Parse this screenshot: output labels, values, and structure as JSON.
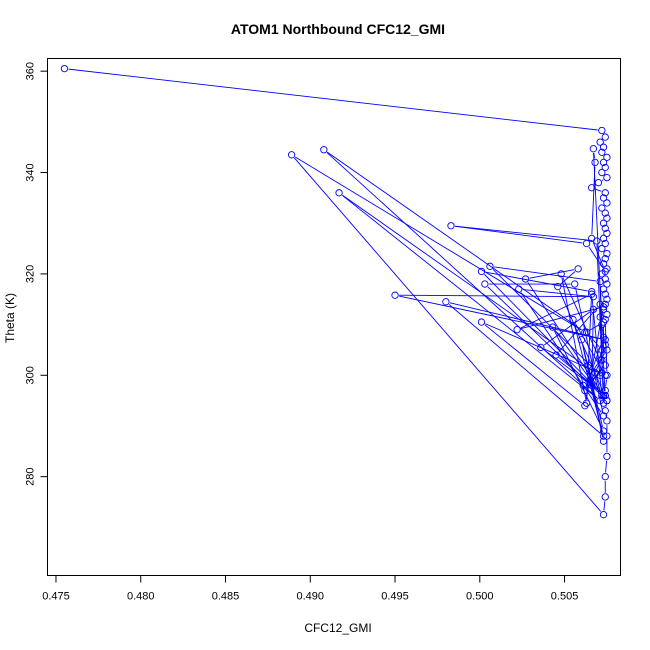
{
  "chart_data": {
    "type": "line",
    "title": "ATOM1 Northbound CFC12_GMI",
    "xlabel": "CFC12_GMI",
    "ylabel": "Theta (K)",
    "xlim": [
      0.4745,
      0.5083
    ],
    "ylim": [
      260.5,
      362.5
    ],
    "xticks": [
      0.475,
      0.48,
      0.485,
      0.49,
      0.495,
      0.5,
      0.505
    ],
    "xtick_labels": [
      "0.475",
      "0.480",
      "0.485",
      "0.490",
      "0.495",
      "0.500",
      "0.505"
    ],
    "yticks": [
      280,
      300,
      320,
      340,
      360
    ],
    "ytick_labels": [
      "280",
      "300",
      "320",
      "340",
      "360"
    ],
    "grid": false,
    "series_color": "#0000ff",
    "series": [
      {
        "marker": "open-circle",
        "x": [
          0.4755,
          0.5072,
          0.5074,
          0.5071,
          0.5073,
          0.5072,
          0.5075,
          0.5073,
          0.5074,
          0.5072,
          0.5075,
          0.507,
          0.5066,
          0.5074,
          0.5073,
          0.5075,
          0.5072,
          0.5074,
          0.5075,
          0.5073,
          0.5074,
          0.5075,
          0.5073,
          0.5074,
          0.5072,
          0.5075,
          0.5074,
          0.5073,
          0.5075,
          0.5072,
          0.5074,
          0.5075,
          0.5073,
          0.5074,
          0.5075,
          0.5074,
          0.5073,
          0.5075,
          0.5074,
          0.5075,
          0.5074,
          0.5075,
          0.5074,
          0.5075,
          0.5075,
          0.5075,
          0.5074,
          0.5074,
          0.5073,
          0.4889,
          0.5062,
          0.4908,
          0.5071,
          0.4917,
          0.5068,
          0.5073,
          0.5069,
          0.4983,
          0.5063,
          0.5074,
          0.5066,
          0.5068,
          0.5067,
          0.5072,
          0.5071,
          0.5006,
          0.5071,
          0.5071,
          0.5048,
          0.5063,
          0.5066,
          0.5001,
          0.5073,
          0.5027,
          0.5058,
          0.5046,
          0.5075,
          0.5003,
          0.5056,
          0.5073,
          0.5023,
          0.5067,
          0.495,
          0.5074,
          0.498,
          0.5073,
          0.5055,
          0.5074,
          0.5001,
          0.5062,
          0.5073,
          0.5022,
          0.5066,
          0.5072,
          0.5043,
          0.5073,
          0.506,
          0.5073,
          0.5064,
          0.5066,
          0.5067,
          0.5036,
          0.5074,
          0.5071,
          0.5045,
          0.5074,
          0.5072,
          0.5061,
          0.5075,
          0.5073,
          0.5062,
          0.5074,
          0.5065,
          0.5073,
          0.5073,
          0.5063,
          0.5072,
          0.5074,
          0.5071,
          0.5072
        ],
        "y": [
          360.5,
          348.3,
          347.0,
          346.0,
          345.0,
          344.0,
          343.0,
          342.0,
          341.0,
          340.0,
          339.0,
          338.0,
          337.0,
          336.0,
          335.0,
          334.0,
          333.0,
          332.0,
          331.0,
          330.0,
          329.0,
          328.0,
          327.0,
          326.0,
          325.0,
          324.0,
          323.0,
          322.0,
          321.0,
          320.0,
          319.0,
          318.0,
          317.0,
          316.0,
          315.0,
          314.0,
          313.0,
          312.0,
          311.0,
          300.0,
          297.0,
          295.0,
          293.0,
          291.0,
          288.0,
          284.0,
          280.0,
          276.0,
          272.5,
          343.5,
          308.5,
          344.5,
          295.0,
          336.0,
          300.5,
          294.5,
          326.5,
          329.5,
          326.0,
          320.5,
          327.0,
          342.0,
          344.7,
          310.0,
          318.5,
          321.5,
          300.0,
          303.0,
          320.0,
          294.5,
          316.5,
          320.5,
          296.0,
          319.0,
          321.0,
          317.5,
          295.0,
          318.0,
          318.0,
          292.0,
          317.0,
          315.5,
          315.8,
          307.0,
          314.5,
          288.0,
          311.0,
          300.0,
          310.5,
          294.0,
          313.5,
          309.0,
          316.0,
          296.0,
          309.5,
          289.0,
          307.0,
          287.0,
          302.0,
          298.0,
          313.0,
          305.5,
          296.0,
          314.0,
          304.0,
          296.0,
          300.5,
          298.0,
          305.0,
          307.5,
          297.0,
          302.0,
          298.5,
          304.0,
          310.5,
          308.5,
          305.0,
          306.0,
          311.5,
          303.0
        ]
      }
    ]
  }
}
